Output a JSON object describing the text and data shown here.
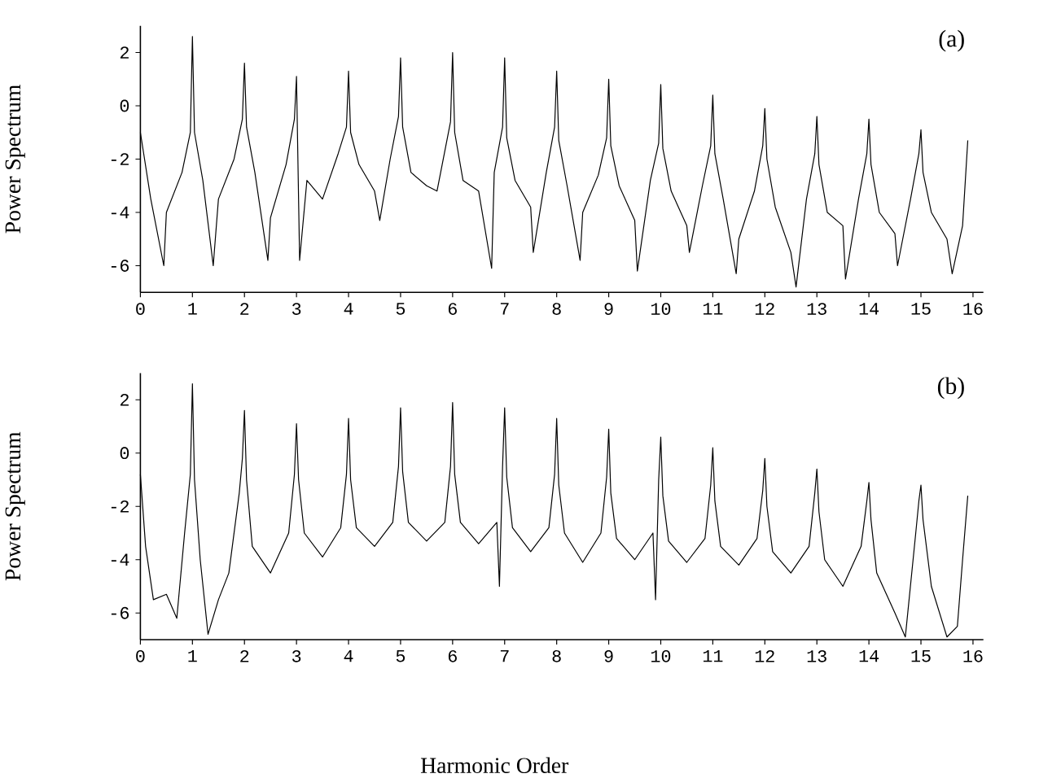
{
  "chart_data": [
    {
      "type": "line",
      "title": "(a)",
      "ylabel": "Power Spectrum",
      "color": "#000000",
      "xlim": [
        0,
        16.2
      ],
      "ylim": [
        -7,
        3
      ],
      "xticks": [
        0,
        1,
        2,
        3,
        4,
        5,
        6,
        7,
        8,
        9,
        10,
        11,
        12,
        13,
        14,
        15,
        16
      ],
      "yticks": [
        -6,
        -4,
        -2,
        0,
        2
      ],
      "x": [
        0,
        0.2,
        0.45,
        0.5,
        0.8,
        0.96,
        1,
        1.04,
        1.2,
        1.4,
        1.5,
        1.8,
        1.96,
        2,
        2.04,
        2.2,
        2.45,
        2.5,
        2.8,
        2.96,
        3,
        3.06,
        3.2,
        3.5,
        3.8,
        3.96,
        4,
        4.04,
        4.2,
        4.5,
        4.6,
        4.8,
        4.96,
        5,
        5.04,
        5.2,
        5.5,
        5.7,
        5.8,
        5.96,
        6,
        6.04,
        6.2,
        6.5,
        6.75,
        6.8,
        6.96,
        7,
        7.04,
        7.2,
        7.5,
        7.55,
        7.8,
        7.96,
        8,
        8.04,
        8.2,
        8.45,
        8.5,
        8.8,
        8.96,
        9,
        9.04,
        9.2,
        9.5,
        9.55,
        9.8,
        9.96,
        10,
        10.04,
        10.2,
        10.5,
        10.55,
        10.8,
        10.96,
        11,
        11.04,
        11.2,
        11.45,
        11.5,
        11.8,
        11.96,
        12,
        12.04,
        12.2,
        12.5,
        12.6,
        12.8,
        12.96,
        13,
        13.04,
        13.2,
        13.5,
        13.55,
        13.8,
        13.96,
        14,
        14.04,
        14.2,
        14.5,
        14.55,
        14.8,
        14.96,
        15,
        15.04,
        15.2,
        15.5,
        15.6,
        15.8,
        15.9
      ],
      "values": [
        -1.0,
        -3.5,
        -6.0,
        -4.0,
        -2.5,
        -1.0,
        2.6,
        -1.0,
        -2.8,
        -6.0,
        -3.5,
        -2.0,
        -0.5,
        1.6,
        -0.8,
        -2.5,
        -5.8,
        -4.2,
        -2.2,
        -0.5,
        1.1,
        -5.8,
        -2.8,
        -3.5,
        -1.8,
        -0.8,
        1.3,
        -1.0,
        -2.2,
        -3.2,
        -4.3,
        -2.0,
        -0.4,
        1.8,
        -0.8,
        -2.5,
        -3.0,
        -3.2,
        -2.2,
        -0.6,
        2.0,
        -1.0,
        -2.8,
        -3.2,
        -6.1,
        -2.5,
        -0.8,
        1.8,
        -1.2,
        -2.8,
        -3.8,
        -5.5,
        -2.5,
        -0.8,
        1.3,
        -1.3,
        -3.0,
        -5.8,
        -4.0,
        -2.6,
        -1.2,
        1.0,
        -1.5,
        -3.0,
        -4.3,
        -6.2,
        -2.8,
        -1.4,
        0.8,
        -1.6,
        -3.2,
        -4.5,
        -5.5,
        -3.0,
        -1.5,
        0.4,
        -1.8,
        -3.5,
        -6.3,
        -5.0,
        -3.2,
        -1.5,
        -0.1,
        -2.0,
        -3.8,
        -5.5,
        -6.8,
        -3.5,
        -1.8,
        -0.4,
        -2.2,
        -4.0,
        -4.5,
        -6.5,
        -3.5,
        -1.8,
        -0.5,
        -2.2,
        -4.0,
        -4.8,
        -6.0,
        -3.5,
        -1.8,
        -0.9,
        -2.5,
        -4.0,
        -5.0,
        -6.3,
        -4.5,
        -1.3
      ]
    },
    {
      "type": "line",
      "title": "(b)",
      "ylabel": "Power Spectrum",
      "xlabel": "Harmonic Order",
      "color": "#000000",
      "xlim": [
        0,
        16.2
      ],
      "ylim": [
        -7,
        3
      ],
      "xticks": [
        0,
        1,
        2,
        3,
        4,
        5,
        6,
        7,
        8,
        9,
        10,
        11,
        12,
        13,
        14,
        15,
        16
      ],
      "yticks": [
        -6,
        -4,
        -2,
        0,
        2
      ],
      "x": [
        0,
        0.1,
        0.25,
        0.5,
        0.7,
        0.85,
        0.96,
        1,
        1.04,
        1.15,
        1.3,
        1.5,
        1.7,
        1.9,
        1.96,
        2,
        2.04,
        2.15,
        2.5,
        2.85,
        2.96,
        3,
        3.04,
        3.15,
        3.5,
        3.85,
        3.96,
        4,
        4.04,
        4.15,
        4.5,
        4.85,
        4.96,
        5,
        5.04,
        5.15,
        5.5,
        5.85,
        5.96,
        6,
        6.04,
        6.15,
        6.5,
        6.85,
        6.9,
        6.96,
        7,
        7.04,
        7.15,
        7.5,
        7.85,
        7.96,
        8,
        8.04,
        8.15,
        8.5,
        8.85,
        8.96,
        9,
        9.04,
        9.15,
        9.5,
        9.85,
        9.9,
        9.96,
        10,
        10.04,
        10.15,
        10.5,
        10.85,
        10.96,
        11,
        11.04,
        11.15,
        11.5,
        11.85,
        11.96,
        12,
        12.04,
        12.15,
        12.5,
        12.85,
        12.96,
        13,
        13.04,
        13.15,
        13.5,
        13.85,
        13.96,
        14,
        14.04,
        14.15,
        14.5,
        14.7,
        14.9,
        14.96,
        15,
        15.04,
        15.2,
        15.5,
        15.7,
        15.8,
        15.9
      ],
      "values": [
        -0.8,
        -3.5,
        -5.5,
        -5.3,
        -6.2,
        -3.0,
        -0.8,
        2.6,
        -1.0,
        -4.0,
        -6.8,
        -5.5,
        -4.5,
        -1.5,
        -0.2,
        1.6,
        -1.0,
        -3.5,
        -4.5,
        -3.0,
        -0.8,
        1.1,
        -1.0,
        -3.0,
        -3.9,
        -2.8,
        -0.8,
        1.3,
        -1.0,
        -2.8,
        -3.5,
        -2.6,
        -0.5,
        1.7,
        -0.7,
        -2.6,
        -3.3,
        -2.6,
        -0.5,
        1.9,
        -0.8,
        -2.6,
        -3.4,
        -2.6,
        -5.0,
        -0.5,
        1.7,
        -0.9,
        -2.8,
        -3.7,
        -2.8,
        -0.8,
        1.3,
        -1.2,
        -3.0,
        -4.1,
        -3.0,
        -0.9,
        0.9,
        -1.5,
        -3.2,
        -4.0,
        -3.0,
        -5.5,
        -1.0,
        0.6,
        -1.6,
        -3.3,
        -4.1,
        -3.2,
        -1.2,
        0.2,
        -1.8,
        -3.5,
        -4.2,
        -3.2,
        -1.4,
        -0.2,
        -2.0,
        -3.7,
        -4.5,
        -3.5,
        -1.5,
        -0.6,
        -2.2,
        -4.0,
        -5.0,
        -3.5,
        -1.8,
        -1.1,
        -2.5,
        -4.5,
        -6.0,
        -6.9,
        -3.0,
        -1.8,
        -1.2,
        -2.5,
        -5.0,
        -6.9,
        -6.5,
        -4.0,
        -1.6
      ]
    }
  ]
}
